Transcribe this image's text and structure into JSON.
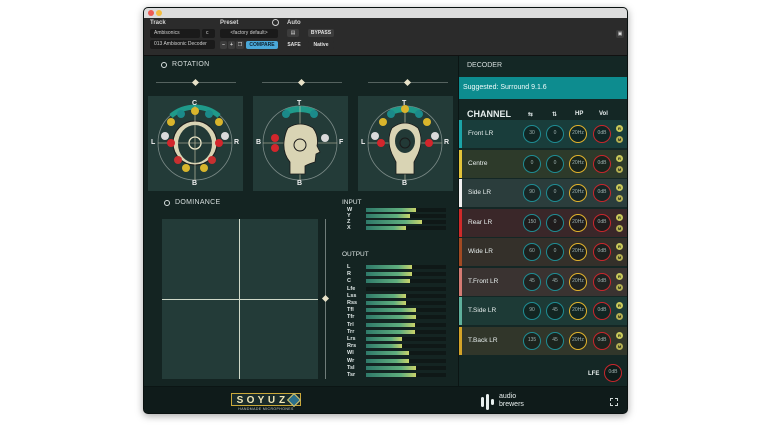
{
  "host": {
    "track_label": "Track",
    "preset_label": "Preset",
    "auto_label": "Auto",
    "track_name": "Ambisonics",
    "track_channel": "c",
    "plugin_insert": "013 Ambisonic Decoder",
    "preset_value": "<factory default>",
    "compare_label": "COMPARE",
    "bypass_label": "BYPASS",
    "safe_label": "SAFE",
    "native_label": "Native",
    "minus_label": "–",
    "plus_label": "+"
  },
  "rotation": {
    "title": "ROTATION",
    "panels": [
      {
        "top": "C",
        "left": "L",
        "right": "R",
        "bottom": "B"
      },
      {
        "top": "T",
        "left": "B",
        "right": "F",
        "bottom": "B"
      },
      {
        "top": "T",
        "left": "L",
        "right": "R",
        "bottom": "B"
      }
    ]
  },
  "dominance": {
    "title": "DOMINANCE"
  },
  "input": {
    "title": "INPUT",
    "channels": [
      {
        "label": "W",
        "level": 0.62
      },
      {
        "label": "Y",
        "level": 0.55
      },
      {
        "label": "Z",
        "level": 0.7
      },
      {
        "label": "X",
        "level": 0.5
      }
    ]
  },
  "output": {
    "title": "OUTPUT",
    "channels": [
      {
        "label": "L",
        "level": 0.57
      },
      {
        "label": "R",
        "level": 0.57
      },
      {
        "label": "C",
        "level": 0.55
      },
      {
        "label": "Lfe",
        "level": 0.0
      },
      {
        "label": "Lss",
        "level": 0.5
      },
      {
        "label": "Rss",
        "level": 0.5
      },
      {
        "label": "Tfl",
        "level": 0.63
      },
      {
        "label": "Tfr",
        "level": 0.63
      },
      {
        "label": "Trl",
        "level": 0.61
      },
      {
        "label": "Trr",
        "level": 0.61
      },
      {
        "label": "Lrs",
        "level": 0.45
      },
      {
        "label": "Rrs",
        "level": 0.45
      },
      {
        "label": "Wl",
        "level": 0.54
      },
      {
        "label": "Wr",
        "level": 0.54
      },
      {
        "label": "Tsl",
        "level": 0.62
      },
      {
        "label": "Tsr",
        "level": 0.62
      }
    ]
  },
  "decoder": {
    "title": "DECODER",
    "suggested": "Suggested: Surround 9.1.6",
    "columns": {
      "channel": "CHANNEL",
      "angle": "⇆",
      "elev": "⇅",
      "hp": "HP",
      "vol": "Vol"
    },
    "rows": [
      {
        "name": "Front LR",
        "color": "#1ba4a8",
        "angle": "30",
        "elev": "0",
        "hp": "20Hz",
        "vol": "0dB",
        "bg": "#193d3b"
      },
      {
        "name": "Centre",
        "color": "#e3c43a",
        "angle": "0",
        "elev": "0",
        "hp": "20Hz",
        "vol": "0dB",
        "bg": "#2d3a2a"
      },
      {
        "name": "Side LR",
        "color": "#f2f2f2",
        "angle": "90",
        "elev": "0",
        "hp": "20Hz",
        "vol": "0dB",
        "bg": "#2b3d3c"
      },
      {
        "name": "Rear LR",
        "color": "#d02a2a",
        "angle": "150",
        "elev": "0",
        "hp": "20Hz",
        "vol": "0dB",
        "bg": "#3a2729"
      },
      {
        "name": "Wide LR",
        "color": "#a24a23",
        "angle": "60",
        "elev": "0",
        "hp": "20Hz",
        "vol": "0dB",
        "bg": "#34302a"
      },
      {
        "name": "T.Front LR",
        "color": "#d57b73",
        "angle": "45",
        "elev": "45",
        "hp": "20Hz",
        "vol": "0dB",
        "bg": "#3a3331"
      },
      {
        "name": "T.Side LR",
        "color": "#5fb09c",
        "angle": "90",
        "elev": "45",
        "hp": "20Hz",
        "vol": "0dB",
        "bg": "#1d3a36"
      },
      {
        "name": "T.Back LR",
        "color": "#d4a328",
        "angle": "135",
        "elev": "45",
        "hp": "20Hz",
        "vol": "0dB",
        "bg": "#31362a"
      }
    ],
    "mini_top": "R",
    "mini_bottom": "M",
    "lfe_label": "LFE",
    "lfe_vol": "0dB"
  },
  "footer": {
    "soyuz_letters": [
      "S",
      "O",
      "Y",
      "U",
      "Z"
    ],
    "soyuz_sub": "HANDMADE MICROPHONES",
    "brand_line1": "audio",
    "brand_line2": "brewers"
  },
  "colors": {
    "accent_teal": "#0d8c8f",
    "knob_teal": "#1f8c93",
    "knob_yellow": "#e1b22c",
    "knob_red": "#c8262c"
  }
}
